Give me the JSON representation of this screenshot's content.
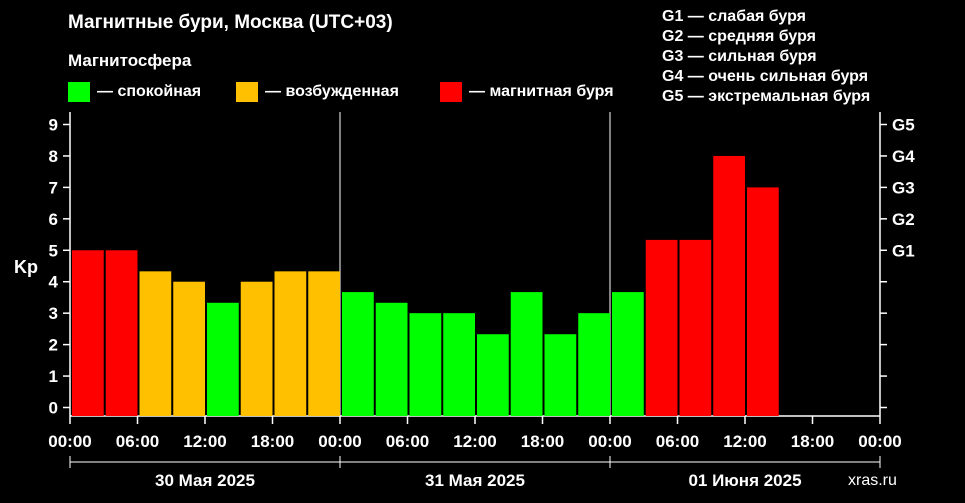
{
  "header": {
    "title": "Магнитные бури, Москва (UTC+03)",
    "subtitle": "Магнитосфера"
  },
  "legend": [
    {
      "label": "— спокойная",
      "color": "#00ff00"
    },
    {
      "label": "— возбужденная",
      "color": "#ffc000"
    },
    {
      "label": "— магнитная буря",
      "color": "#ff0000"
    }
  ],
  "g_legend": [
    "G1 — слабая буря",
    "G2 — средняя буря",
    "G3 — сильная буря",
    "G4 — очень сильная буря",
    "G5 — экстремальная буря"
  ],
  "footer": "xras.ru",
  "chart_data": {
    "type": "bar",
    "ylabel": "Kp",
    "ylim": [
      0,
      9
    ],
    "y_ticks": [
      "0",
      "1",
      "2",
      "3",
      "4",
      "5",
      "6",
      "7",
      "8",
      "9"
    ],
    "right_ticks": [
      {
        "label": "G1",
        "value": 5
      },
      {
        "label": "G2",
        "value": 6
      },
      {
        "label": "G3",
        "value": 7
      },
      {
        "label": "G4",
        "value": 8
      },
      {
        "label": "G5",
        "value": 9
      }
    ],
    "x_tick_labels": [
      "00:00",
      "06:00",
      "12:00",
      "18:00",
      "00:00",
      "06:00",
      "12:00",
      "18:00",
      "00:00",
      "06:00",
      "12:00",
      "18:00",
      "00:00"
    ],
    "days": [
      "30 Мая 2025",
      "31 Мая 2025",
      "01 Июня 2025"
    ],
    "total_slots": 24,
    "bars": [
      {
        "value": 5.0,
        "color": "#ff0000"
      },
      {
        "value": 5.0,
        "color": "#ff0000"
      },
      {
        "value": 4.33,
        "color": "#ffc000"
      },
      {
        "value": 4.0,
        "color": "#ffc000"
      },
      {
        "value": 3.33,
        "color": "#00ff00"
      },
      {
        "value": 4.0,
        "color": "#ffc000"
      },
      {
        "value": 4.33,
        "color": "#ffc000"
      },
      {
        "value": 4.33,
        "color": "#ffc000"
      },
      {
        "value": 3.67,
        "color": "#00ff00"
      },
      {
        "value": 3.33,
        "color": "#00ff00"
      },
      {
        "value": 3.0,
        "color": "#00ff00"
      },
      {
        "value": 3.0,
        "color": "#00ff00"
      },
      {
        "value": 2.33,
        "color": "#00ff00"
      },
      {
        "value": 3.67,
        "color": "#00ff00"
      },
      {
        "value": 2.33,
        "color": "#00ff00"
      },
      {
        "value": 3.0,
        "color": "#00ff00"
      },
      {
        "value": 3.67,
        "color": "#00ff00"
      },
      {
        "value": 5.33,
        "color": "#ff0000"
      },
      {
        "value": 5.33,
        "color": "#ff0000"
      },
      {
        "value": 8.0,
        "color": "#ff0000"
      },
      {
        "value": 7.0,
        "color": "#ff0000"
      }
    ]
  }
}
